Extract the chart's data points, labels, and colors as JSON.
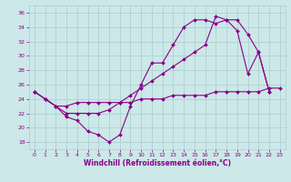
{
  "xlabel": "Windchill (Refroidissement éolien,°C)",
  "x": [
    0,
    1,
    2,
    3,
    4,
    5,
    6,
    7,
    8,
    9,
    10,
    11,
    12,
    13,
    14,
    15,
    16,
    17,
    18,
    19,
    20,
    21,
    22,
    23
  ],
  "line1": [
    25.0,
    24.0,
    23.0,
    23.0,
    23.5,
    23.5,
    23.5,
    23.5,
    23.5,
    23.5,
    24.0,
    24.0,
    24.0,
    24.5,
    24.5,
    24.5,
    24.5,
    25.0,
    25.0,
    25.0,
    25.0,
    25.0,
    25.5,
    25.5
  ],
  "line2": [
    25.0,
    24.0,
    23.0,
    21.5,
    21.0,
    19.5,
    19.0,
    18.0,
    19.0,
    23.0,
    26.0,
    29.0,
    29.0,
    31.5,
    34.0,
    35.0,
    35.0,
    34.5,
    35.0,
    33.5,
    27.5,
    30.5,
    25.0,
    null
  ],
  "line3": [
    25.0,
    24.0,
    23.0,
    22.0,
    22.0,
    22.0,
    22.0,
    22.5,
    23.5,
    24.5,
    25.5,
    26.5,
    27.5,
    28.5,
    29.5,
    30.5,
    31.5,
    35.5,
    35.0,
    35.0,
    33.0,
    30.5,
    25.0,
    null
  ],
  "bg_color": "#cce8e8",
  "grid_color": "#aacccc",
  "line_color": "#880088",
  "markersize": 2.0,
  "linewidth": 0.8,
  "xlim": [
    -0.5,
    23.5
  ],
  "ylim": [
    17,
    37
  ],
  "yticks": [
    18,
    20,
    22,
    24,
    26,
    28,
    30,
    32,
    34,
    36
  ],
  "xticks": [
    0,
    1,
    2,
    3,
    4,
    5,
    6,
    7,
    8,
    9,
    10,
    11,
    12,
    13,
    14,
    15,
    16,
    17,
    18,
    19,
    20,
    21,
    22,
    23
  ],
  "tick_fontsize": 4.5,
  "xlabel_fontsize": 5.5
}
